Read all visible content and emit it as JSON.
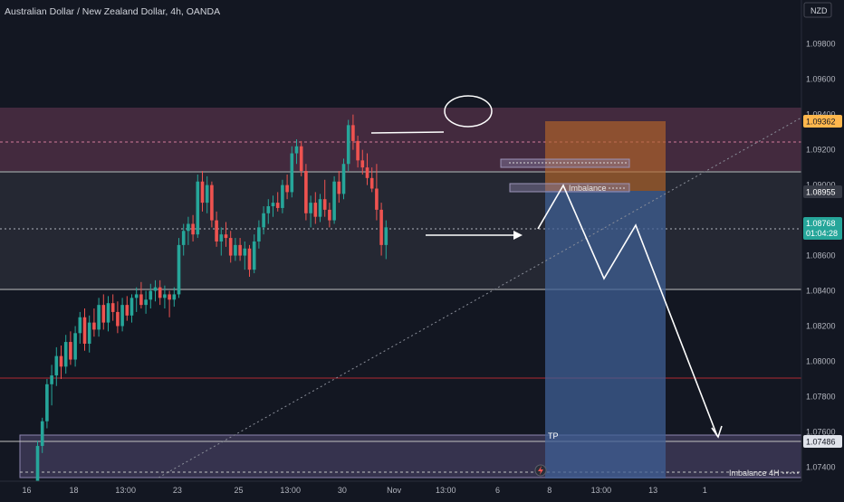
{
  "title": "Australian Dollar / New Zealand Dollar, 4h, OANDA",
  "currency": "NZD",
  "chart_data": {
    "type": "candlestick",
    "y_ticks": [
      "1.07400",
      "1.07600",
      "1.07800",
      "1.08000",
      "1.08200",
      "1.08400",
      "1.08600",
      "1.08800",
      "1.09000",
      "1.09200",
      "1.09400",
      "1.09600",
      "1.09800"
    ],
    "ylim": [
      1.0732,
      1.1005
    ],
    "x_ticks": [
      {
        "label": "16",
        "bar": 0
      },
      {
        "label": "18",
        "bar": 10
      },
      {
        "label": "13:00",
        "bar": 21
      },
      {
        "label": "23",
        "bar": 32
      },
      {
        "label": "25",
        "bar": 45
      },
      {
        "label": "13:00",
        "bar": 56
      },
      {
        "label": "30",
        "bar": 67
      },
      {
        "label": "Nov",
        "bar": 78
      },
      {
        "label": "13:00",
        "bar": 89
      },
      {
        "label": "6",
        "bar": 100
      },
      {
        "label": "8",
        "bar": 111
      },
      {
        "label": "13:00",
        "bar": 122
      },
      {
        "label": "13",
        "bar": 133
      },
      {
        "label": "1",
        "bar": 144
      }
    ],
    "candles": [
      [
        1.073,
        1.0755,
        1.0728,
        1.0752
      ],
      [
        1.0752,
        1.0768,
        1.0748,
        1.0766
      ],
      [
        1.0766,
        1.079,
        1.0762,
        1.0787
      ],
      [
        1.0787,
        1.0798,
        1.0775,
        1.0792
      ],
      [
        1.0792,
        1.0808,
        1.0786,
        1.0803
      ],
      [
        1.0803,
        1.0809,
        1.079,
        1.0797
      ],
      [
        1.0797,
        1.0815,
        1.0793,
        1.0811
      ],
      [
        1.0811,
        1.0817,
        1.0798,
        1.0801
      ],
      [
        1.0801,
        1.082,
        1.0797,
        1.0816
      ],
      [
        1.0816,
        1.0828,
        1.081,
        1.0825
      ],
      [
        1.0825,
        1.083,
        1.0806,
        1.081
      ],
      [
        1.081,
        1.0826,
        1.0805,
        1.0822
      ],
      [
        1.0822,
        1.083,
        1.0814,
        1.0818
      ],
      [
        1.0818,
        1.0836,
        1.0814,
        1.0832
      ],
      [
        1.0832,
        1.0838,
        1.0818,
        1.0822
      ],
      [
        1.0822,
        1.0837,
        1.0817,
        1.0833
      ],
      [
        1.0833,
        1.0838,
        1.0823,
        1.0828
      ],
      [
        1.0828,
        1.0834,
        1.0816,
        1.082
      ],
      [
        1.082,
        1.0836,
        1.0817,
        1.0832
      ],
      [
        1.0832,
        1.0837,
        1.0823,
        1.0826
      ],
      [
        1.0826,
        1.0838,
        1.0822,
        1.0836
      ],
      [
        1.0836,
        1.0842,
        1.0828,
        1.0838
      ],
      [
        1.0838,
        1.0845,
        1.083,
        1.0832
      ],
      [
        1.0832,
        1.084,
        1.0827,
        1.0835
      ],
      [
        1.0835,
        1.0844,
        1.083,
        1.084
      ],
      [
        1.084,
        1.0846,
        1.0834,
        1.0842
      ],
      [
        1.0842,
        1.0846,
        1.0832,
        1.0836
      ],
      [
        1.0836,
        1.0843,
        1.083,
        1.0838
      ],
      [
        1.0838,
        1.084,
        1.0825,
        1.0835
      ],
      [
        1.0835,
        1.0842,
        1.0831,
        1.0838
      ],
      [
        1.0838,
        1.087,
        1.0836,
        1.0866
      ],
      [
        1.0866,
        1.0878,
        1.086,
        1.0874
      ],
      [
        1.0874,
        1.0882,
        1.0866,
        1.0878
      ],
      [
        1.0878,
        1.0883,
        1.0868,
        1.0872
      ],
      [
        1.0872,
        1.0906,
        1.087,
        1.0902
      ],
      [
        1.0902,
        1.0908,
        1.0885,
        1.089
      ],
      [
        1.089,
        1.0905,
        1.0884,
        1.09
      ],
      [
        1.09,
        1.0902,
        1.0876,
        1.088
      ],
      [
        1.088,
        1.0885,
        1.0865,
        1.0868
      ],
      [
        1.0868,
        1.0876,
        1.086,
        1.0872
      ],
      [
        1.0872,
        1.0879,
        1.0865,
        1.087
      ],
      [
        1.087,
        1.0874,
        1.0856,
        1.086
      ],
      [
        1.086,
        1.087,
        1.0857,
        1.0866
      ],
      [
        1.0866,
        1.087,
        1.0857,
        1.086
      ],
      [
        1.086,
        1.0868,
        1.0852,
        1.0864
      ],
      [
        1.0864,
        1.0866,
        1.0848,
        1.0852
      ],
      [
        1.0852,
        1.0872,
        1.085,
        1.0868
      ],
      [
        1.0868,
        1.088,
        1.0864,
        1.0876
      ],
      [
        1.0876,
        1.0888,
        1.0872,
        1.0884
      ],
      [
        1.0884,
        1.0892,
        1.0878,
        1.0888
      ],
      [
        1.0888,
        1.0894,
        1.0882,
        1.089
      ],
      [
        1.089,
        1.0896,
        1.0885,
        1.0887
      ],
      [
        1.0887,
        1.0903,
        1.0884,
        1.09
      ],
      [
        1.09,
        1.0906,
        1.0892,
        1.0896
      ],
      [
        1.0896,
        1.0922,
        1.0893,
        1.0918
      ],
      [
        1.0918,
        1.0926,
        1.0912,
        1.0922
      ],
      [
        1.0922,
        1.0925,
        1.0905,
        1.0908
      ],
      [
        1.0908,
        1.0912,
        1.088,
        1.0884
      ],
      [
        1.0884,
        1.0894,
        1.0876,
        1.089
      ],
      [
        1.089,
        1.0896,
        1.0878,
        1.0882
      ],
      [
        1.0882,
        1.0895,
        1.0879,
        1.0892
      ],
      [
        1.0892,
        1.0903,
        1.0882,
        1.0886
      ],
      [
        1.0886,
        1.089,
        1.0876,
        1.088
      ],
      [
        1.088,
        1.0905,
        1.0878,
        1.0902
      ],
      [
        1.0902,
        1.0908,
        1.089,
        1.0895
      ],
      [
        1.0895,
        1.0915,
        1.0892,
        1.0912
      ],
      [
        1.0912,
        1.0937,
        1.0908,
        1.0934
      ],
      [
        1.0934,
        1.094,
        1.092,
        1.0925
      ],
      [
        1.0925,
        1.0928,
        1.091,
        1.0914
      ],
      [
        1.0914,
        1.092,
        1.0906,
        1.091
      ],
      [
        1.091,
        1.0918,
        1.09,
        1.0904
      ],
      [
        1.0904,
        1.091,
        1.0896,
        1.0898
      ],
      [
        1.0898,
        1.0912,
        1.088,
        1.0886
      ],
      [
        1.0886,
        1.089,
        1.086,
        1.0866
      ],
      [
        1.0866,
        1.088,
        1.0858,
        1.0876
      ]
    ]
  },
  "annotations": {
    "zone_upper_price": "1.09362",
    "pivot_price": "1.08955",
    "current_price": "1.08768",
    "countdown": "01:04:28",
    "tp_price": "1.07486",
    "imbalance_label": "Imbalance",
    "imbalance_4h_label": "Imbalance 4H",
    "tp_label": "TP"
  },
  "colors": {
    "background": "#131722",
    "up": "#26a69a",
    "down": "#ef5350",
    "label_accent": "#26a69a",
    "zone_upper": "#ffb74d",
    "pivot_label": "#363a45"
  }
}
